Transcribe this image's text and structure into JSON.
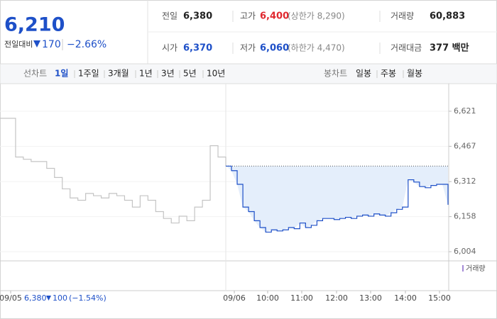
{
  "quote": {
    "price": "6,210",
    "change_label": "전일대비",
    "change": "170",
    "change_pct": "−2.66%"
  },
  "stats": [
    [
      {
        "label": "전일",
        "value": "6,380"
      },
      {
        "label": "고가",
        "value": "6,400",
        "note": "(상한가 8,290)"
      },
      {
        "label": "거래량",
        "value": "60,883"
      }
    ],
    [
      {
        "label": "시가",
        "value": "6,370"
      },
      {
        "label": "저가",
        "value": "6,060",
        "note": "(하한가 4,470)"
      },
      {
        "label": "거래대금",
        "value": "377 백만"
      }
    ]
  ],
  "line_tabs": {
    "label": "선차트",
    "items": [
      "1일",
      "1주일",
      "3개월",
      "1년",
      "3년",
      "5년",
      "10년"
    ]
  },
  "candle_tabs": {
    "label": "봉차트",
    "items": [
      "일봉",
      "주봉",
      "월봉"
    ]
  },
  "chart_data": {
    "type": "line",
    "ylim": [
      5973,
      6736
    ],
    "yticks": [
      {
        "value": 6004,
        "label": "6,004"
      },
      {
        "value": 6158,
        "label": "6,158"
      },
      {
        "value": 6312,
        "label": "6,312"
      },
      {
        "value": 6467,
        "label": "6,467"
      },
      {
        "value": 6621,
        "label": "6,621"
      }
    ],
    "x_labels": [
      "09/05",
      "09/06",
      "10:00",
      "11:00",
      "12:00",
      "13:00",
      "14:00",
      "15:00"
    ],
    "reference": 6380,
    "series": [
      {
        "color": "#c4c4c4",
        "values": [
          6590,
          6590,
          6420,
          6410,
          6400,
          6400,
          6370,
          6330,
          6280,
          6240,
          6230,
          6260,
          6250,
          6240,
          6260,
          6250,
          6230,
          6200,
          6250,
          6230,
          6180,
          6150,
          6130,
          6160,
          6140,
          6200,
          6230,
          6470,
          6420,
          6380
        ]
      },
      {
        "color": "#1e50c8",
        "values": [
          6380,
          6360,
          6300,
          6200,
          6180,
          6140,
          6110,
          6090,
          6100,
          6095,
          6100,
          6110,
          6105,
          6130,
          6110,
          6120,
          6140,
          6150,
          6150,
          6145,
          6150,
          6155,
          6150,
          6160,
          6165,
          6160,
          6170,
          6165,
          6160,
          6175,
          6190,
          6200,
          6320,
          6310,
          6290,
          6285,
          6295,
          6300,
          6300,
          6210
        ]
      }
    ],
    "volume_legend": "거래량",
    "prev_day": {
      "close": "6,380",
      "change": "100",
      "change_pct": "(−1.54%)"
    }
  }
}
